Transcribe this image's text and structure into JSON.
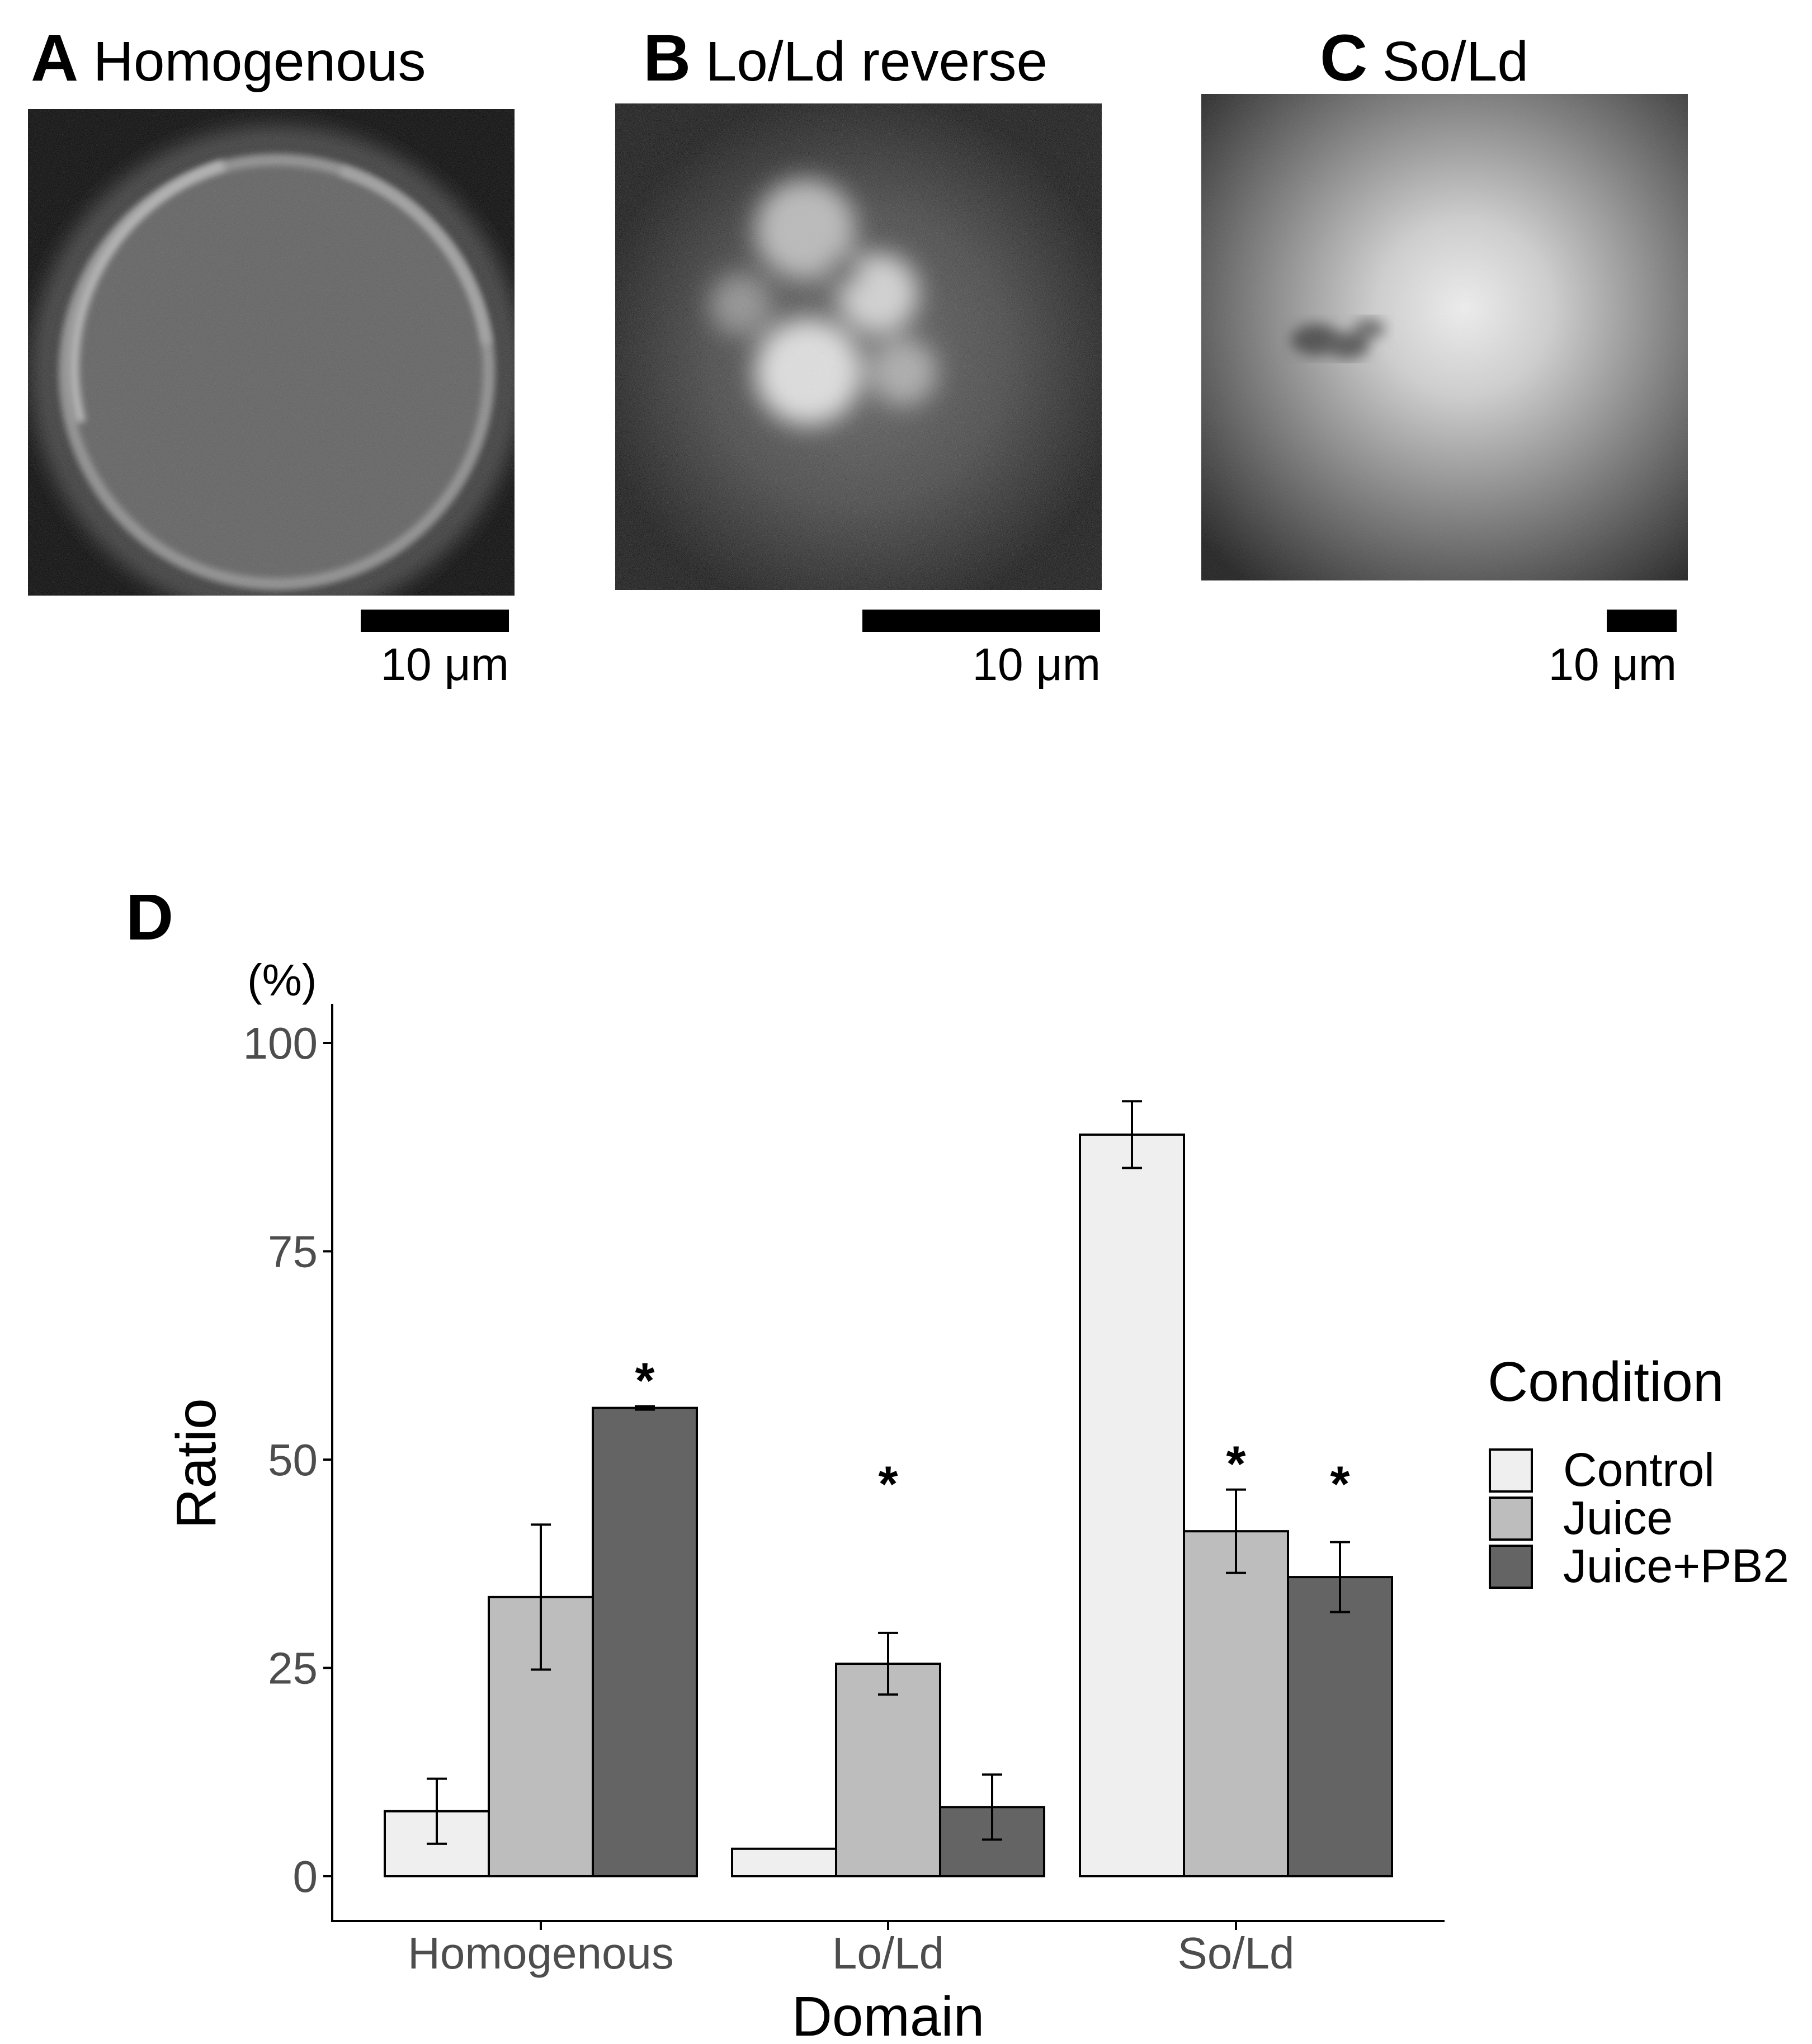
{
  "panels": [
    {
      "letter": "A",
      "title": "Homogenous",
      "scale_label": "10 μm",
      "pattern": "ring"
    },
    {
      "letter": "B",
      "title": "Lo/Ld reverse",
      "scale_label": "10 μm",
      "pattern": "blobs"
    },
    {
      "letter": "C",
      "title": "So/Ld",
      "scale_label": "10 μm",
      "pattern": "diffuse"
    }
  ],
  "panel_d": {
    "letter": "D",
    "unit_label": "(%)"
  },
  "chart_data": {
    "type": "bar",
    "xlabel": "Domain",
    "ylabel": "Ratio",
    "ylim": [
      0,
      105
    ],
    "yticks": [
      0,
      25,
      50,
      75,
      100
    ],
    "categories": [
      "Homogenous",
      "Lo/Ld",
      "So/Ld"
    ],
    "legend_title": "Condition",
    "legend_position": "right",
    "grid": false,
    "series": [
      {
        "name": "Control",
        "color": "#efefef",
        "values": [
          7.8,
          3.3,
          89.0
        ],
        "errors": [
          3.9,
          0,
          4.0
        ],
        "significant": [
          false,
          false,
          false
        ]
      },
      {
        "name": "Juice",
        "color": "#bdbdbd",
        "values": [
          33.5,
          25.5,
          41.4
        ],
        "errors": [
          8.7,
          3.7,
          5.0
        ],
        "significant": [
          false,
          true,
          true
        ]
      },
      {
        "name": "Juice+PB2",
        "color": "#646464",
        "values": [
          56.2,
          8.3,
          35.9
        ],
        "errors": [
          0.2,
          3.9,
          4.2
        ],
        "significant": [
          true,
          false,
          true
        ]
      }
    ],
    "significance_marker": "*"
  }
}
